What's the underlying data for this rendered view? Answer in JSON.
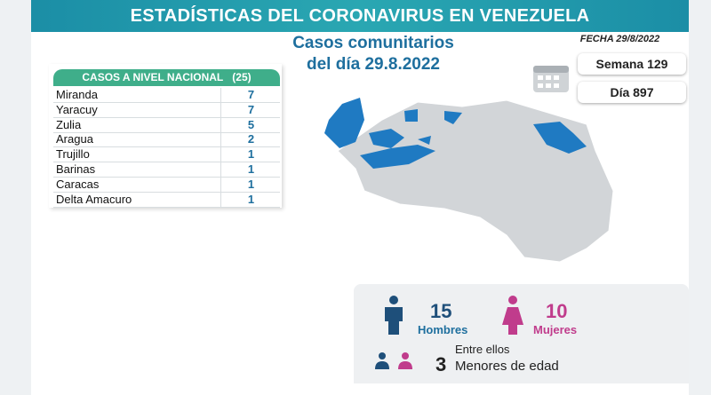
{
  "header": {
    "title": "ESTADÍSTICAS DEL CORONAVIRUS EN VENEZUELA",
    "subtitle_lines": [
      "Casos comunitarios",
      "del día 29.8.2022"
    ],
    "date": "FECHA 29/8/2022"
  },
  "counters": {
    "week": "Semana 129",
    "day": "Día 897"
  },
  "table": {
    "title": "CASOS A NIVEL NACIONAL",
    "total": "(25)",
    "rows": [
      [
        "Miranda",
        7
      ],
      [
        "Yaracuy",
        7
      ],
      [
        "Zulia",
        5
      ],
      [
        "Aragua",
        2
      ],
      [
        "Trujillo",
        1
      ],
      [
        "Barinas",
        1
      ],
      [
        "Caracas",
        1
      ],
      [
        "Delta Amacuro",
        1
      ]
    ]
  },
  "gender": {
    "men": {
      "count": 15,
      "label": "Hombres"
    },
    "women": {
      "count": 10,
      "label": "Mujeres"
    }
  },
  "minors": {
    "intro": "Entre ellos",
    "count": 3,
    "label": "Menores de edad"
  }
}
